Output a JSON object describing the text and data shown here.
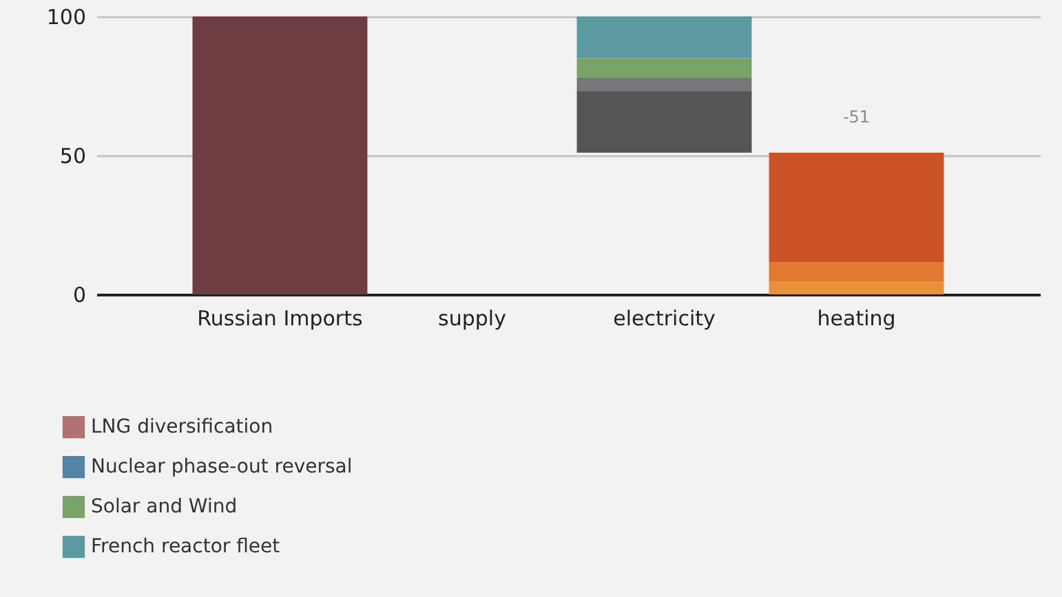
{
  "chart_data": {
    "type": "bar",
    "stacked": true,
    "categories": [
      "Russian Imports",
      "supply",
      "electricity",
      "heating"
    ],
    "series": [
      {
        "color": "#6e3d42",
        "values": [
          100,
          null,
          null,
          null
        ]
      },
      {
        "name": "LNG diversification",
        "color": "#b07272",
        "values": [
          null,
          0,
          null,
          null
        ]
      },
      {
        "name": "Nuclear phase-out reversal",
        "color": "#5682a3",
        "values": [
          null,
          0,
          null,
          null
        ]
      },
      {
        "color": "#555555",
        "values": [
          null,
          null,
          22,
          null
        ],
        "base": [
          null,
          null,
          51,
          null
        ]
      },
      {
        "color": "#77777a",
        "values": [
          null,
          null,
          5,
          null
        ]
      },
      {
        "name": "Solar and Wind",
        "color": "#7aa36a",
        "values": [
          null,
          null,
          7,
          null
        ]
      },
      {
        "name": "French reactor fleet",
        "color": "#5a9aa0",
        "values": [
          null,
          null,
          15,
          null
        ]
      },
      {
        "color": "#e8913a",
        "values": [
          null,
          null,
          null,
          4.5
        ]
      },
      {
        "color": "#e07a30",
        "values": [
          null,
          null,
          null,
          7
        ]
      },
      {
        "color": "#cc5228",
        "values": [
          null,
          null,
          null,
          39.5
        ]
      }
    ],
    "ylim": [
      0,
      100
    ],
    "yticks": [
      0,
      50,
      100
    ],
    "grid": "y",
    "legend": "bottom left",
    "annotations": [
      {
        "text": "-51",
        "x": "heating",
        "y": 51
      }
    ]
  }
}
